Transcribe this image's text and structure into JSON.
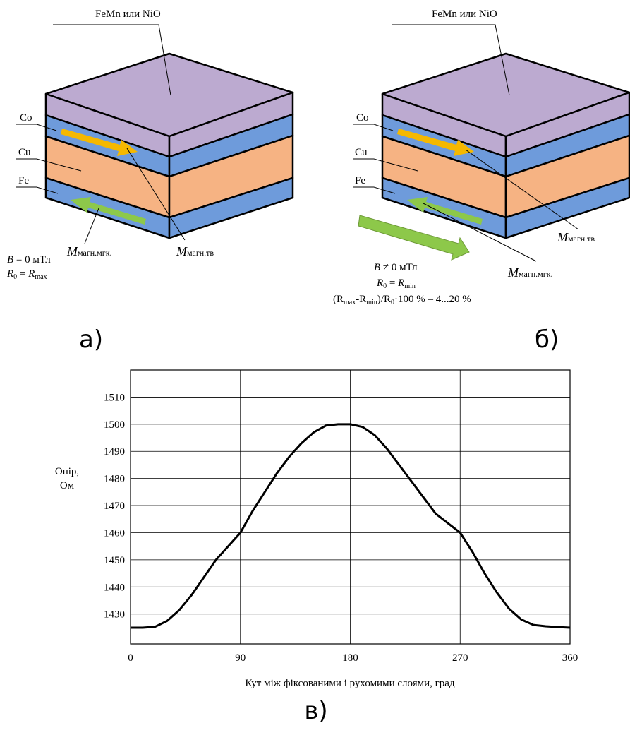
{
  "panel_a": {
    "top_layer": "FeMn или NiO",
    "layers": [
      "Co",
      "Cu",
      "Fe"
    ],
    "m_hard": [
      "M",
      "магн.тв"
    ],
    "m_soft": [
      "M",
      "магн.мгк."
    ],
    "field": [
      "B",
      " = 0 мТл"
    ],
    "resistance": [
      "R",
      "0",
      " = ",
      "R",
      "max"
    ],
    "caption": "а)"
  },
  "panel_b": {
    "top_layer": "FeMn или NiO",
    "layers": [
      "Co",
      "Cu",
      "Fe"
    ],
    "m_hard": [
      "M",
      "магн.тв"
    ],
    "m_soft": [
      "M",
      "магн.мгк."
    ],
    "field": [
      "B",
      " ≠ 0 мТл"
    ],
    "resistance": [
      "R",
      "0",
      " = ",
      "R",
      "min"
    ],
    "ratio": [
      "(R",
      "max",
      "-R",
      "min",
      ")/R",
      "0",
      "·100 % – 4...20 %"
    ],
    "caption": "б)"
  },
  "chart_data": {
    "type": "line",
    "ylabel": [
      "Опір,",
      "Ом"
    ],
    "xlabel": "Кут між фіксованими і рухомими слоями, град",
    "xlim": [
      0,
      360
    ],
    "xticks": [
      0,
      90,
      180,
      270,
      360
    ],
    "ylim": [
      1419,
      1520
    ],
    "yticks": [
      1430,
      1440,
      1450,
      1460,
      1470,
      1480,
      1490,
      1500,
      1510
    ],
    "grid": true,
    "x": [
      0,
      10,
      20,
      30,
      40,
      50,
      60,
      70,
      80,
      90,
      100,
      110,
      120,
      130,
      140,
      150,
      160,
      170,
      180,
      190,
      200,
      210,
      220,
      230,
      240,
      250,
      260,
      270,
      280,
      290,
      300,
      310,
      320,
      330,
      340,
      350,
      360
    ],
    "series": [
      {
        "name": "R",
        "color": "#000000",
        "values": [
          1425,
          1425,
          1425.3,
          1427.5,
          1431.5,
          1437,
          1443.5,
          1450,
          1455,
          1460,
          1468,
          1475,
          1482,
          1488,
          1493,
          1497,
          1499.5,
          1500,
          1500,
          1499,
          1496,
          1491,
          1485,
          1479,
          1473,
          1467,
          1463.5,
          1460,
          1453,
          1445,
          1438,
          1432,
          1428,
          1426,
          1425.5,
          1425.2,
          1425
        ]
      }
    ]
  },
  "caption_c": "в)"
}
